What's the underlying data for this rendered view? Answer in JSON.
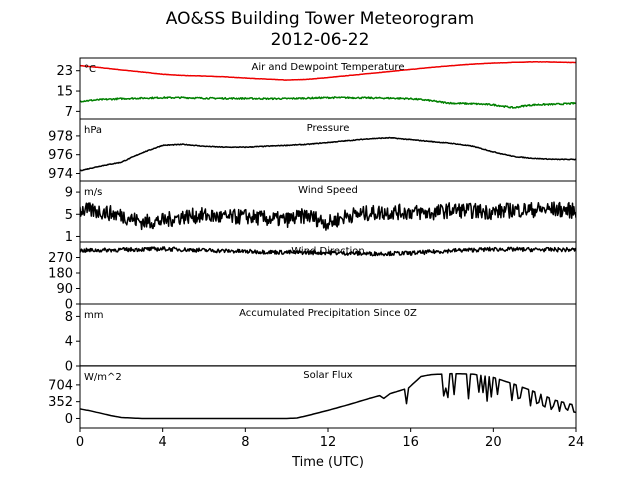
{
  "title": "AO&SS Building Tower Meteorogram",
  "subtitle": "2012-06-22",
  "chart_data": {
    "type": "line",
    "xlabel": "Time (UTC)",
    "xlim": [
      0,
      24
    ],
    "xticks": [
      0,
      4,
      8,
      12,
      16,
      20,
      24
    ],
    "panels": [
      {
        "title": "Air and Dewpoint Temperature",
        "unit": "°C",
        "ylim": [
          4,
          28
        ],
        "yticks": [
          7,
          15,
          23
        ],
        "series": [
          {
            "color": "#ee0000",
            "noise": 0.05,
            "x": [
              0,
              1,
              2,
              3,
              4,
              5,
              6,
              7,
              8,
              9,
              10,
              11,
              12,
              13,
              14,
              15,
              16,
              17,
              18,
              19,
              20,
              21,
              22,
              23,
              24
            ],
            "y": [
              25.0,
              24.2,
              23.3,
              22.5,
              21.6,
              21.1,
              20.9,
              20.6,
              20.1,
              19.7,
              19.3,
              19.6,
              20.3,
              21.1,
              21.9,
              22.7,
              23.5,
              24.3,
              25.0,
              25.6,
              26.0,
              26.3,
              26.5,
              26.4,
              26.2
            ]
          },
          {
            "color": "#008000",
            "noise": 0.3,
            "x": [
              0,
              1,
              2,
              3,
              4,
              5,
              6,
              7,
              8,
              9,
              10,
              11,
              12,
              13,
              14,
              15,
              16,
              16.8,
              17.5,
              18,
              19,
              20,
              20.5,
              21,
              21.5,
              22,
              23,
              24
            ],
            "y": [
              11.0,
              11.6,
              12.0,
              12.2,
              12.4,
              12.4,
              12.2,
              12.1,
              12.1,
              12.0,
              12.0,
              12.2,
              12.4,
              12.4,
              12.3,
              12.2,
              12.0,
              11.4,
              10.6,
              10.2,
              10.0,
              9.6,
              9.0,
              8.4,
              9.2,
              9.6,
              9.8,
              10.2
            ]
          }
        ]
      },
      {
        "title": "Pressure",
        "unit": "hPa",
        "ylim": [
          973.2,
          979.8
        ],
        "yticks": [
          974,
          976,
          978
        ],
        "series": [
          {
            "color": "#000000",
            "noise": 0.04,
            "x": [
              0,
              1,
              2,
              2.5,
              3,
              3.5,
              4,
              5,
              6,
              7,
              8,
              9,
              10,
              11,
              12,
              13,
              14,
              15,
              16,
              17,
              18,
              19,
              20,
              21,
              22,
              23,
              24
            ],
            "y": [
              974.3,
              974.8,
              975.2,
              975.7,
              976.2,
              976.6,
              977.0,
              977.1,
              976.9,
              976.8,
              976.8,
              976.9,
              977.0,
              977.1,
              977.3,
              977.5,
              977.7,
              977.8,
              977.6,
              977.4,
              977.2,
              976.9,
              976.3,
              975.8,
              975.6,
              975.5,
              975.5
            ]
          }
        ]
      },
      {
        "title": "Wind Speed",
        "unit": "m/s",
        "ylim": [
          0,
          11
        ],
        "yticks": [
          1,
          5,
          9
        ],
        "series": [
          {
            "color": "#000000",
            "noise": 1.4,
            "x": [
              0,
              1,
              2,
              3,
              4,
              5,
              6,
              7,
              8,
              9,
              10,
              11,
              12,
              13,
              14,
              15,
              16,
              17,
              18,
              19,
              20,
              21,
              22,
              23,
              24
            ],
            "y": [
              5.8,
              5.5,
              4.8,
              3.6,
              3.8,
              4.6,
              4.8,
              4.4,
              4.6,
              4.2,
              4.0,
              4.8,
              3.4,
              4.8,
              5.2,
              5.4,
              5.4,
              5.2,
              5.8,
              5.6,
              5.4,
              5.8,
              5.8,
              5.9,
              5.6
            ]
          }
        ]
      },
      {
        "title": "Wind Direction",
        "unit": "",
        "ylim": [
          0,
          360
        ],
        "yticks": [
          0,
          90,
          180,
          270
        ],
        "series": [
          {
            "color": "#000000",
            "noise": 12,
            "x": [
              0,
              2,
              4,
              6,
              8,
              10,
              12,
              14,
              16,
              18,
              20,
              22,
              24
            ],
            "y": [
              310,
              315,
              320,
              312,
              305,
              300,
              298,
              292,
              295,
              310,
              318,
              316,
              315
            ]
          }
        ]
      },
      {
        "title": "Accumulated Precipitation Since 0Z",
        "unit": "mm",
        "ylim": [
          0,
          10
        ],
        "yticks": [
          0,
          4,
          8
        ],
        "series": [
          {
            "color": "#000000",
            "noise": 0,
            "x": [
              0,
              24
            ],
            "y": [
              0,
              0
            ]
          }
        ]
      },
      {
        "title": "Solar Flux",
        "unit": "W/m^2",
        "ylim": [
          -200,
          1100
        ],
        "yticks": [
          0,
          352,
          704
        ],
        "series": [
          {
            "color": "#000000",
            "noise": 0,
            "spikes": [
              15.8,
              24.0,
              0.35,
              0.6
            ],
            "x": [
              0,
              0.5,
              1,
              1.5,
              2,
              3,
              6,
              9,
              10,
              10.5,
              11,
              12,
              13,
              14,
              14.5,
              14.7,
              15,
              15.3,
              15.6,
              15.9,
              16.5,
              17,
              18,
              19,
              20,
              21,
              22,
              23,
              24
            ],
            "y": [
              200,
              160,
              110,
              60,
              20,
              0,
              0,
              0,
              0,
              10,
              60,
              170,
              290,
              420,
              480,
              420,
              520,
              560,
              600,
              640,
              880,
              920,
              940,
              930,
              860,
              720,
              560,
              380,
              270
            ]
          }
        ]
      }
    ]
  }
}
